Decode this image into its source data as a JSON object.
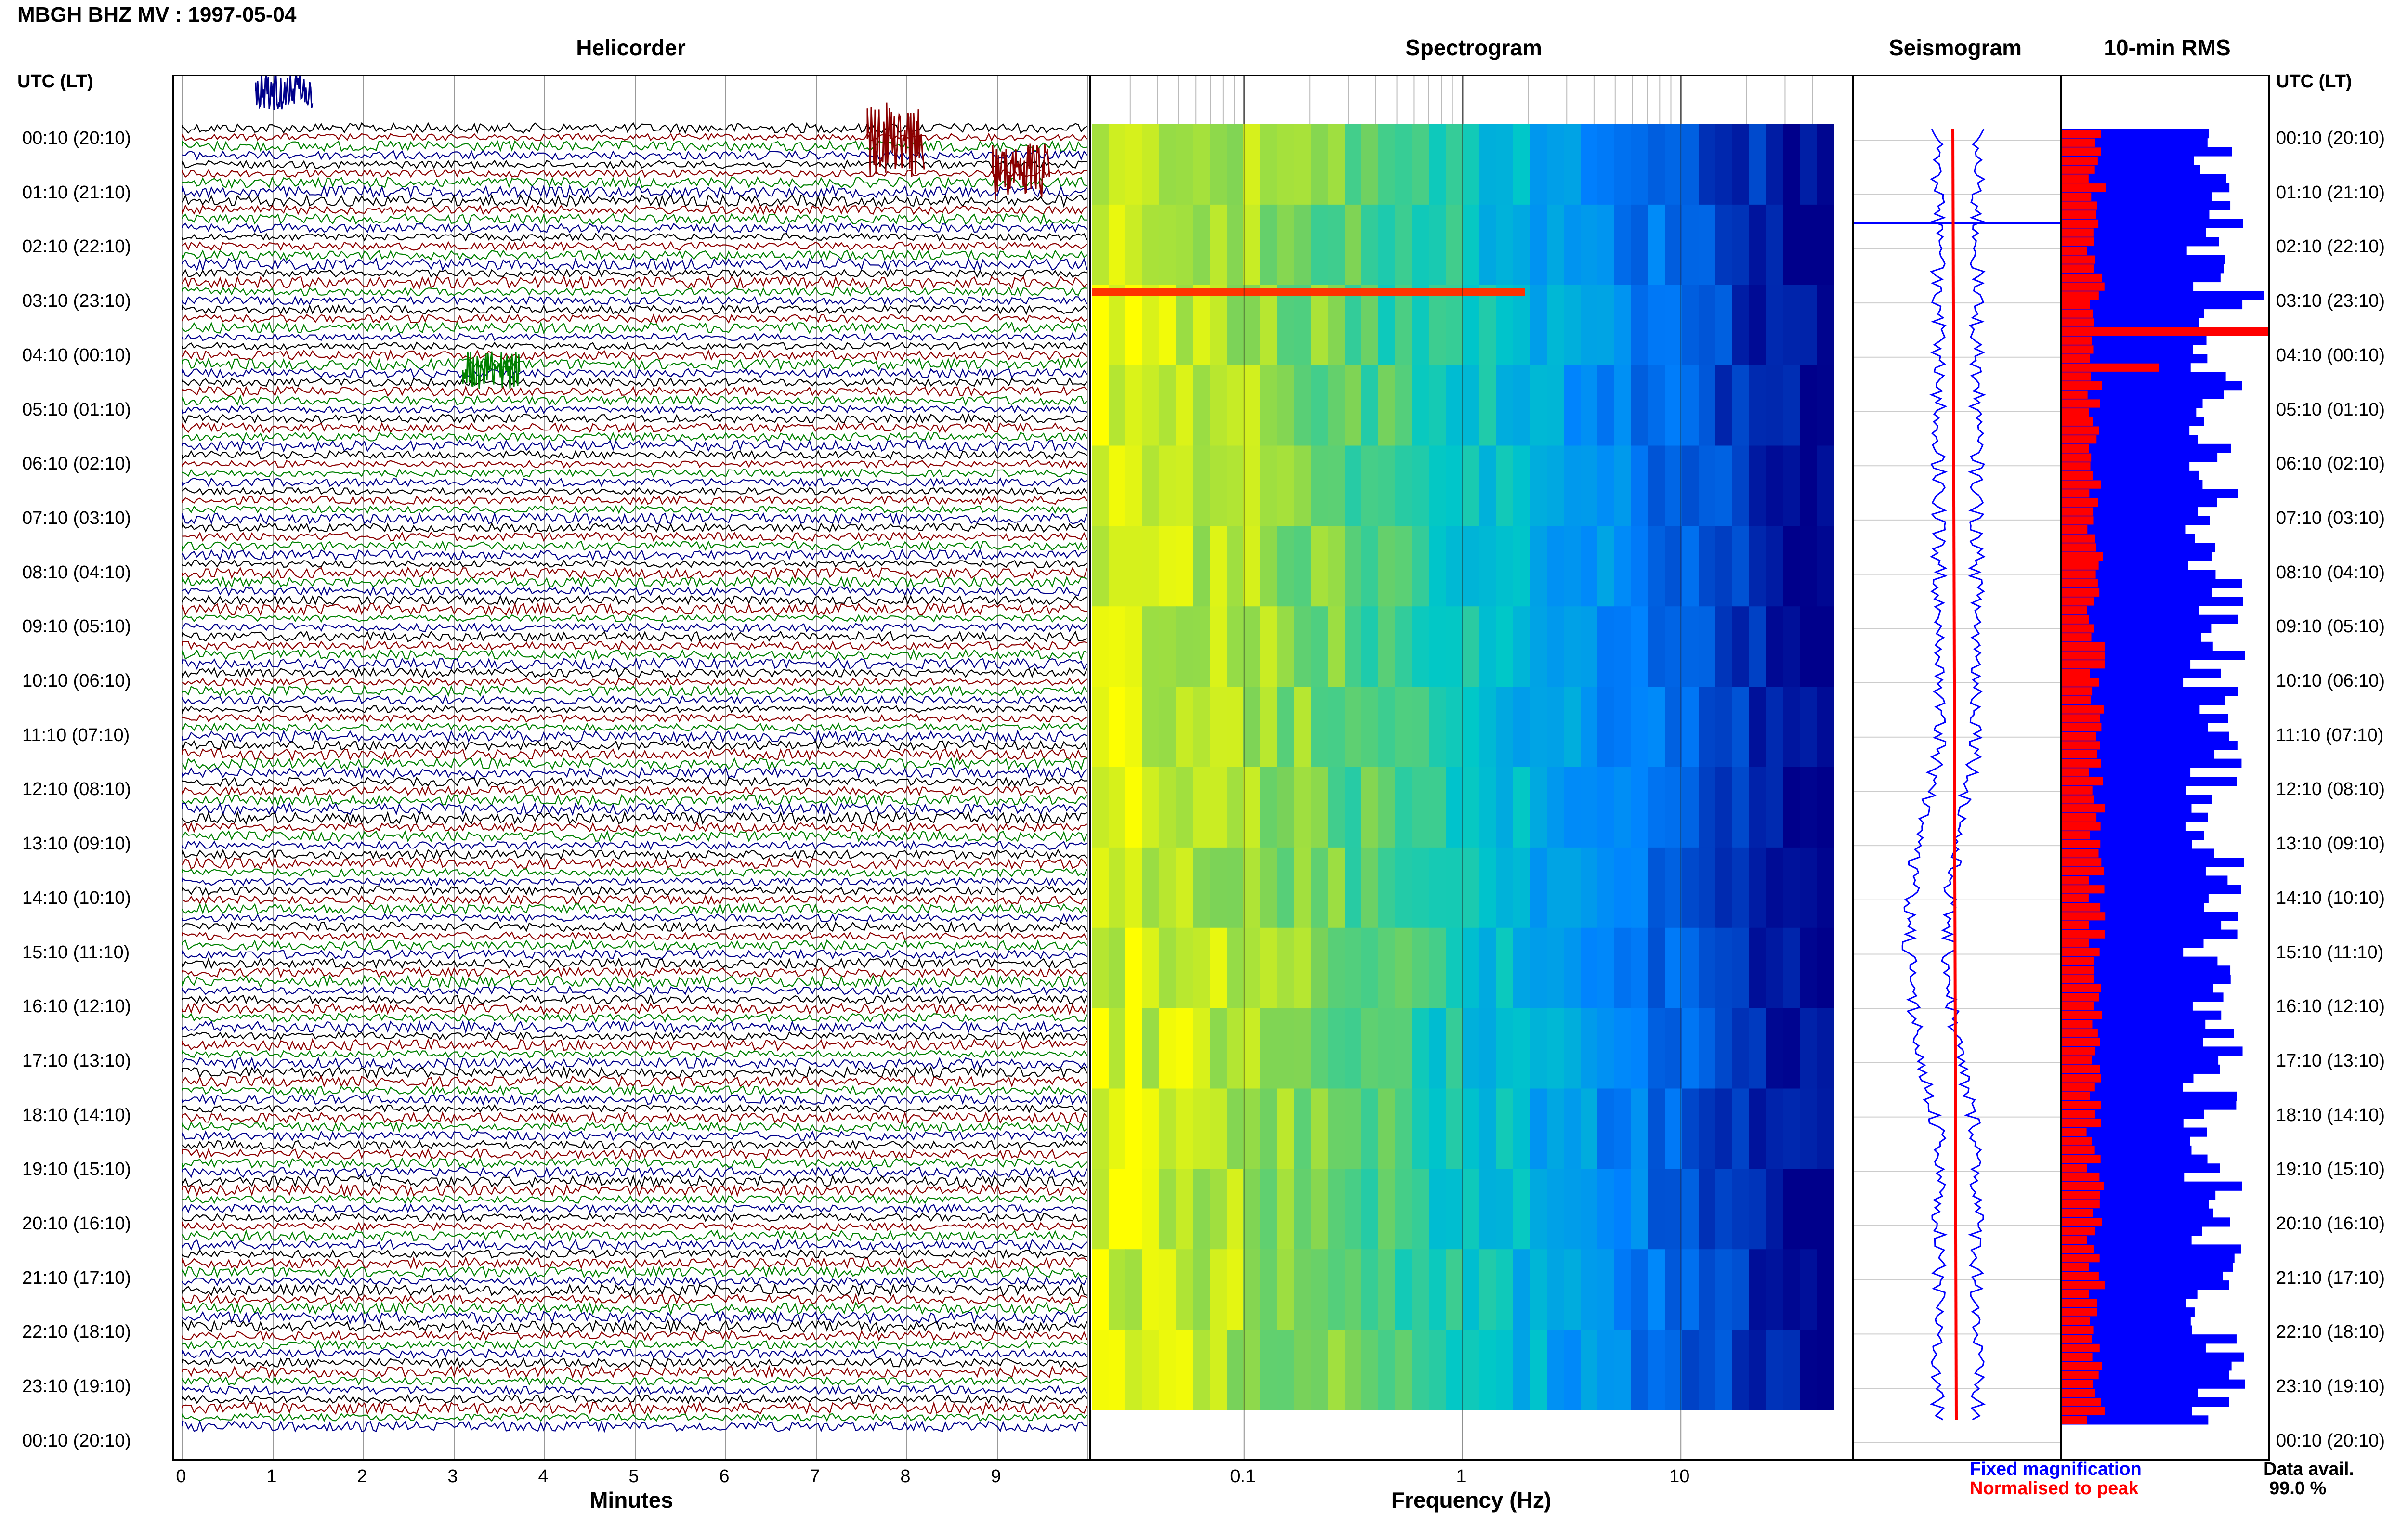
{
  "title": "MBGH BHZ MV : 1997-05-04",
  "panels": {
    "helicorder": "Helicorder",
    "spectrogram": "Spectrogram",
    "seismogram": "Seismogram",
    "rms": "10-min RMS"
  },
  "utc_header": "UTC (LT)",
  "time_labels": [
    "00:10 (20:10)",
    "01:10 (21:10)",
    "02:10 (22:10)",
    "03:10 (23:10)",
    "04:10 (00:10)",
    "05:10 (01:10)",
    "06:10 (02:10)",
    "07:10 (03:10)",
    "08:10 (04:10)",
    "09:10 (05:10)",
    "10:10 (06:10)",
    "11:10 (07:10)",
    "12:10 (08:10)",
    "13:10 (09:10)",
    "14:10 (10:10)",
    "15:10 (11:10)",
    "16:10 (12:10)",
    "17:10 (13:10)",
    "18:10 (14:10)",
    "19:10 (15:10)",
    "20:10 (16:10)",
    "21:10 (17:10)",
    "22:10 (18:10)",
    "23:10 (19:10)",
    "00:10 (20:10)"
  ],
  "x_axes": {
    "minutes": {
      "label": "Minutes",
      "ticks": [
        "0",
        "1",
        "2",
        "3",
        "4",
        "5",
        "6",
        "7",
        "8",
        "9"
      ]
    },
    "frequency": {
      "label": "Frequency (Hz)",
      "ticks": [
        "0.1",
        "1",
        "10"
      ]
    }
  },
  "legend": {
    "fixed": "Fixed magnification",
    "normalised": "Normalised to peak",
    "fixed_color": "#0000ff",
    "normalised_color": "#ff0000"
  },
  "availability": {
    "label": "Data avail.",
    "value": "99.0 %"
  },
  "colors": {
    "trace_cycle": [
      "#000000",
      "#8b0000",
      "#008000",
      "#00008b"
    ],
    "spectrogram_low": "#00008b",
    "spectrogram_high": "#ffff00"
  },
  "chart_data": [
    {
      "type": "line",
      "title": "Helicorder",
      "xlabel": "Minutes",
      "xlim": [
        0,
        10
      ],
      "rows": 144,
      "ylabel": "UTC (LT)",
      "grid": true
    },
    {
      "type": "heatmap",
      "title": "Spectrogram",
      "xlabel": "Frequency (Hz)",
      "xscale": "log",
      "xlim": [
        0.02,
        50
      ],
      "x_ticks": [
        0.1,
        1,
        10
      ]
    },
    {
      "type": "line",
      "title": "Seismogram",
      "series": [
        {
          "name": "Fixed magnification"
        },
        {
          "name": "Normalised to peak"
        }
      ]
    },
    {
      "type": "bar",
      "title": "10-min RMS",
      "orientation": "horizontal",
      "series": [
        {
          "name": "Fixed magnification"
        },
        {
          "name": "Normalised to peak"
        }
      ]
    }
  ]
}
